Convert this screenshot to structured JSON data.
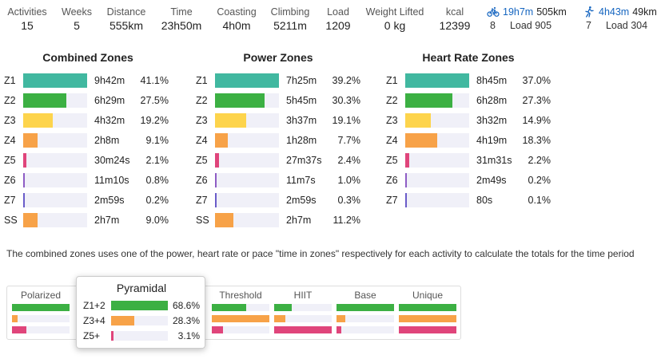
{
  "colors": {
    "z1": "#41b8a0",
    "z2": "#3cb043",
    "z3": "#fdd44c",
    "z4": "#f7a248",
    "z5": "#e0457b",
    "z6": "#8e5dc5",
    "z7": "#6a5cc9",
    "ss": "#f7a248",
    "track": "#f0f0f8"
  },
  "stats": [
    {
      "label": "Activities",
      "value": "15"
    },
    {
      "label": "Weeks",
      "value": "5"
    },
    {
      "label": "Distance",
      "value": "555km"
    },
    {
      "label": "Time",
      "value": "23h50m"
    },
    {
      "label": "Coasting",
      "value": "4h0m"
    },
    {
      "label": "Climbing",
      "value": "5211m"
    },
    {
      "label": "Load",
      "value": "1209"
    },
    {
      "label": "Weight Lifted",
      "value": "0 kg"
    },
    {
      "label": "kcal",
      "value": "12399"
    }
  ],
  "sports": [
    {
      "icon": "bike-icon",
      "time": "19h7m",
      "distance": "505km",
      "count": "8",
      "load": "Load 905"
    },
    {
      "icon": "run-icon",
      "time": "4h43m",
      "distance": "49km",
      "count": "7",
      "load": "Load 304"
    }
  ],
  "panels": [
    {
      "title": "Combined Zones",
      "rows": [
        {
          "zone": "Z1",
          "key": "z1",
          "time": "9h42m",
          "pct": "41.1%",
          "fraction": 1.0
        },
        {
          "zone": "Z2",
          "key": "z2",
          "time": "6h29m",
          "pct": "27.5%",
          "fraction": 0.669
        },
        {
          "zone": "Z3",
          "key": "z3",
          "time": "4h32m",
          "pct": "19.2%",
          "fraction": 0.467
        },
        {
          "zone": "Z4",
          "key": "z4",
          "time": "2h8m",
          "pct": "9.1%",
          "fraction": 0.221
        },
        {
          "zone": "Z5",
          "key": "z5",
          "time": "30m24s",
          "pct": "2.1%",
          "fraction": 0.051
        },
        {
          "zone": "Z6",
          "key": "z6",
          "time": "11m10s",
          "pct": "0.8%",
          "fraction": 0.019
        },
        {
          "zone": "Z7",
          "key": "z7",
          "time": "2m59s",
          "pct": "0.2%",
          "fraction": 0.005
        },
        {
          "zone": "SS",
          "key": "ss",
          "time": "2h7m",
          "pct": "9.0%",
          "fraction": 0.219
        }
      ]
    },
    {
      "title": "Power Zones",
      "rows": [
        {
          "zone": "Z1",
          "key": "z1",
          "time": "7h25m",
          "pct": "39.2%",
          "fraction": 1.0
        },
        {
          "zone": "Z2",
          "key": "z2",
          "time": "5h45m",
          "pct": "30.3%",
          "fraction": 0.773
        },
        {
          "zone": "Z3",
          "key": "z3",
          "time": "3h37m",
          "pct": "19.1%",
          "fraction": 0.487
        },
        {
          "zone": "Z4",
          "key": "z4",
          "time": "1h28m",
          "pct": "7.7%",
          "fraction": 0.196
        },
        {
          "zone": "Z5",
          "key": "z5",
          "time": "27m37s",
          "pct": "2.4%",
          "fraction": 0.061
        },
        {
          "zone": "Z6",
          "key": "z6",
          "time": "11m7s",
          "pct": "1.0%",
          "fraction": 0.026
        },
        {
          "zone": "Z7",
          "key": "z7",
          "time": "2m59s",
          "pct": "0.3%",
          "fraction": 0.008
        },
        {
          "zone": "SS",
          "key": "ss",
          "time": "2h7m",
          "pct": "11.2%",
          "fraction": 0.286
        }
      ]
    },
    {
      "title": "Heart Rate Zones",
      "rows": [
        {
          "zone": "Z1",
          "key": "z1",
          "time": "8h45m",
          "pct": "37.0%",
          "fraction": 1.0
        },
        {
          "zone": "Z2",
          "key": "z2",
          "time": "6h28m",
          "pct": "27.3%",
          "fraction": 0.738
        },
        {
          "zone": "Z3",
          "key": "z3",
          "time": "3h32m",
          "pct": "14.9%",
          "fraction": 0.403
        },
        {
          "zone": "Z4",
          "key": "z4",
          "time": "4h19m",
          "pct": "18.3%",
          "fraction": 0.495
        },
        {
          "zone": "Z5",
          "key": "z5",
          "time": "31m31s",
          "pct": "2.2%",
          "fraction": 0.059
        },
        {
          "zone": "Z6",
          "key": "z6",
          "time": "2m49s",
          "pct": "0.2%",
          "fraction": 0.005
        },
        {
          "zone": "Z7",
          "key": "z7",
          "time": "80s",
          "pct": "0.1%",
          "fraction": 0.003
        }
      ]
    }
  ],
  "note": "The combined zones uses one of the power, heart rate or pace \"time in zones\" respectively for each activity to calculate the totals for the time period",
  "distributions": [
    {
      "name": "Polarized",
      "fractions": [
        1.0,
        0.1,
        0.25
      ]
    },
    {
      "name": "Threshold",
      "fractions": [
        0.6,
        1.0,
        0.2
      ]
    },
    {
      "name": "HIIT",
      "fractions": [
        0.3,
        0.2,
        1.0
      ]
    },
    {
      "name": "Base",
      "fractions": [
        1.0,
        0.15,
        0.08
      ]
    },
    {
      "name": "Unique",
      "fractions": [
        1.0,
        1.0,
        1.0
      ]
    }
  ],
  "popup": {
    "title": "Pyramidal",
    "rows": [
      {
        "label": "Z1+2",
        "pct": "68.6%",
        "fraction": 1.0,
        "key": "z2"
      },
      {
        "label": "Z3+4",
        "pct": "28.3%",
        "fraction": 0.41,
        "key": "z4"
      },
      {
        "label": "Z5+",
        "pct": "3.1%",
        "fraction": 0.045,
        "key": "z5"
      }
    ]
  }
}
